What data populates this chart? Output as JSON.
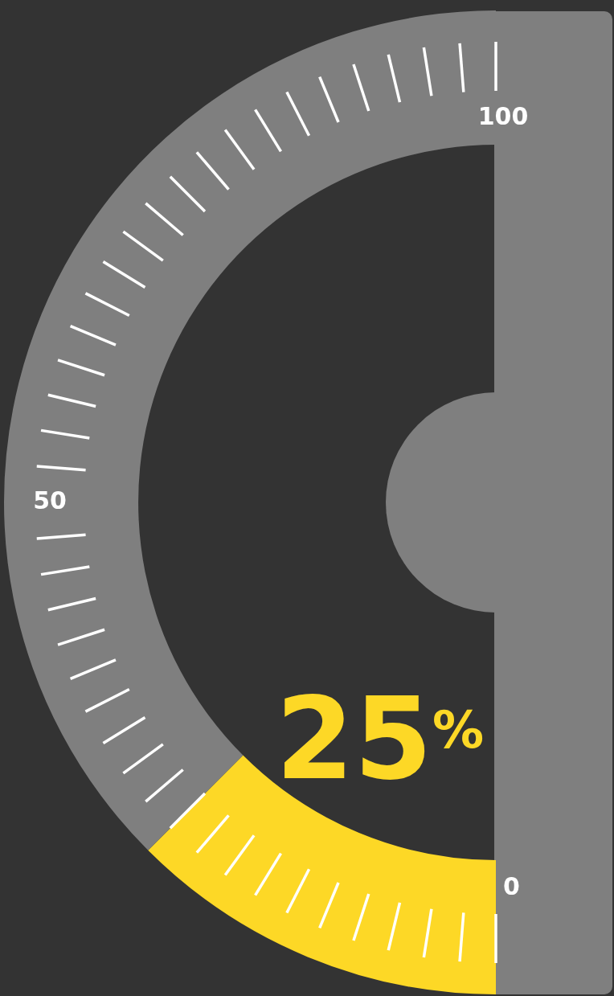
{
  "chart_data": {
    "type": "donut",
    "categories": [
      null,
      null
    ],
    "values": [
      25,
      75
    ],
    "colors": [
      "#fdd826",
      "#7f7f7f"
    ],
    "value_labels": [
      "25$^{%}$",
      null
    ],
    "annotations": [
      "0",
      "50",
      "100"
    ]
  }
}
